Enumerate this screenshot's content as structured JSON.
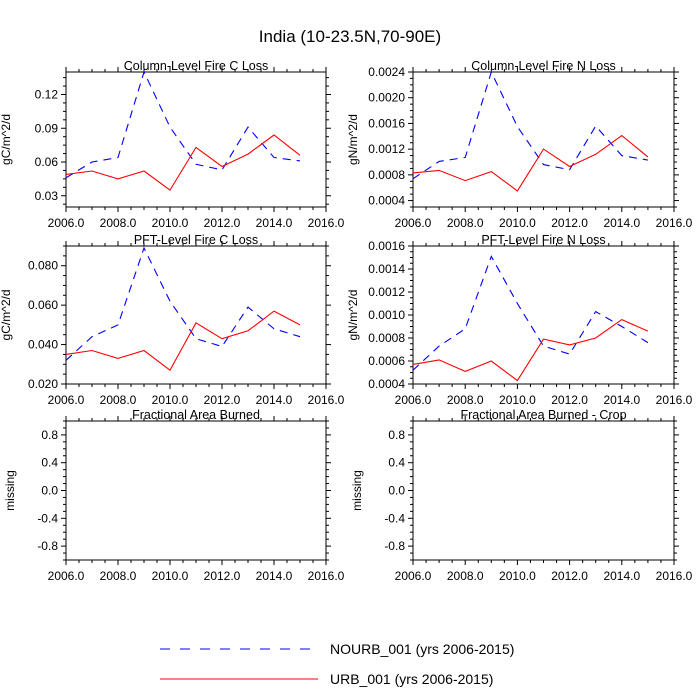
{
  "page_title": "India (10-23.5N,70-90E)",
  "chart_data": [
    {
      "type": "line",
      "title": "Column-Level Fire C Loss",
      "xlabel": "",
      "ylabel": "gC/m^2/d",
      "xlim": [
        2006.0,
        2016.0
      ],
      "ylim": [
        0.02,
        0.14
      ],
      "xticks": [
        2006,
        2008,
        2010,
        2012,
        2014,
        2016
      ],
      "xtick_labels": [
        "2006.0",
        "2008.0",
        "2010.0",
        "2012.0",
        "2014.0",
        "2016.0"
      ],
      "yticks": [
        0.03,
        0.06,
        0.09,
        0.12
      ],
      "ytick_labels": [
        "0.03",
        "0.06",
        "0.09",
        "0.12"
      ],
      "x": [
        2006,
        2007,
        2008,
        2009,
        2010,
        2011,
        2012,
        2013,
        2014,
        2015
      ],
      "series": [
        {
          "name": "NOURB_001 (yrs 2006-2015)",
          "values": [
            0.046,
            0.06,
            0.064,
            0.14,
            0.091,
            0.058,
            0.053,
            0.091,
            0.064,
            0.061
          ]
        },
        {
          "name": "URB_001 (yrs 2006-2015)",
          "values": [
            0.049,
            0.052,
            0.045,
            0.052,
            0.035,
            0.073,
            0.056,
            0.067,
            0.084,
            0.066
          ]
        }
      ]
    },
    {
      "type": "line",
      "title": "Column-Level Fire N Loss",
      "xlabel": "",
      "ylabel": "gN/m^2/d",
      "xlim": [
        2006.0,
        2016.0
      ],
      "ylim": [
        0.0003,
        0.0024
      ],
      "xticks": [
        2006,
        2008,
        2010,
        2012,
        2014,
        2016
      ],
      "xtick_labels": [
        "2006.0",
        "2008.0",
        "2010.0",
        "2012.0",
        "2014.0",
        "2016.0"
      ],
      "yticks": [
        0.0004,
        0.0008,
        0.0012,
        0.0016,
        0.002,
        0.0024
      ],
      "ytick_labels": [
        "0.0004",
        "0.0008",
        "0.0012",
        "0.0016",
        "0.0020",
        "0.0024"
      ],
      "x": [
        2006,
        2007,
        2008,
        2009,
        2010,
        2011,
        2012,
        2013,
        2014,
        2015
      ],
      "series": [
        {
          "name": "NOURB_001 (yrs 2006-2015)",
          "values": [
            0.00074,
            0.00101,
            0.00107,
            0.0024,
            0.00155,
            0.00096,
            0.00088,
            0.00156,
            0.0011,
            0.00103
          ]
        },
        {
          "name": "URB_001 (yrs 2006-2015)",
          "values": [
            0.00083,
            0.00087,
            0.00071,
            0.00085,
            0.00055,
            0.0012,
            0.00093,
            0.00112,
            0.00141,
            0.00108
          ]
        }
      ]
    },
    {
      "type": "line",
      "title": "PFT-Level Fire C Loss",
      "xlabel": "",
      "ylabel": "gC/m^2/d",
      "xlim": [
        2006.0,
        2016.0
      ],
      "ylim": [
        0.02,
        0.09
      ],
      "xticks": [
        2006,
        2008,
        2010,
        2012,
        2014,
        2016
      ],
      "xtick_labels": [
        "2006.0",
        "2008.0",
        "2010.0",
        "2012.0",
        "2014.0",
        "2016.0"
      ],
      "yticks": [
        0.02,
        0.04,
        0.06,
        0.08
      ],
      "ytick_labels": [
        "0.020",
        "0.040",
        "0.060",
        "0.080"
      ],
      "x": [
        2006,
        2007,
        2008,
        2009,
        2010,
        2011,
        2012,
        2013,
        2014,
        2015
      ],
      "series": [
        {
          "name": "NOURB_001 (yrs 2006-2015)",
          "values": [
            0.032,
            0.044,
            0.05,
            0.089,
            0.062,
            0.043,
            0.039,
            0.059,
            0.048,
            0.044
          ]
        },
        {
          "name": "URB_001 (yrs 2006-2015)",
          "values": [
            0.035,
            0.037,
            0.033,
            0.037,
            0.027,
            0.051,
            0.043,
            0.047,
            0.057,
            0.05
          ]
        }
      ]
    },
    {
      "type": "line",
      "title": "PFT-Level Fire N Loss",
      "xlabel": "",
      "ylabel": "gN/m^2/d",
      "xlim": [
        2006.0,
        2016.0
      ],
      "ylim": [
        0.0004,
        0.0016
      ],
      "xticks": [
        2006,
        2008,
        2010,
        2012,
        2014,
        2016
      ],
      "xtick_labels": [
        "2006.0",
        "2008.0",
        "2010.0",
        "2012.0",
        "2014.0",
        "2016.0"
      ],
      "yticks": [
        0.0004,
        0.0006,
        0.0008,
        0.001,
        0.0012,
        0.0014,
        0.0016
      ],
      "ytick_labels": [
        "0.0004",
        "0.0006",
        "0.0008",
        "0.0010",
        "0.0012",
        "0.0014",
        "0.0016"
      ],
      "x": [
        2006,
        2007,
        2008,
        2009,
        2010,
        2011,
        2012,
        2013,
        2014,
        2015
      ],
      "series": [
        {
          "name": "NOURB_001 (yrs 2006-2015)",
          "values": [
            0.00052,
            0.00073,
            0.00088,
            0.00151,
            0.0011,
            0.00073,
            0.00066,
            0.00103,
            0.0009,
            0.00076
          ]
        },
        {
          "name": "URB_001 (yrs 2006-2015)",
          "values": [
            0.00057,
            0.00061,
            0.00051,
            0.0006,
            0.00043,
            0.00079,
            0.00074,
            0.0008,
            0.00096,
            0.00086
          ]
        }
      ]
    },
    {
      "type": "line",
      "title": "Fractional Area Burned",
      "xlabel": "",
      "ylabel": "missing",
      "xlim": [
        2006.0,
        2016.0
      ],
      "ylim": [
        -1.0,
        1.0
      ],
      "xticks": [
        2006,
        2008,
        2010,
        2012,
        2014,
        2016
      ],
      "xtick_labels": [
        "2006.0",
        "2008.0",
        "2010.0",
        "2012.0",
        "2014.0",
        "2016.0"
      ],
      "yticks": [
        -0.8,
        -0.4,
        0.0,
        0.4,
        0.8
      ],
      "ytick_labels": [
        "-0.8",
        "-0.4",
        "0.0",
        "0.4",
        "0.8"
      ],
      "x": [],
      "series": []
    },
    {
      "type": "line",
      "title": "Fractional Area Burned - Crop",
      "xlabel": "",
      "ylabel": "missing",
      "xlim": [
        2006.0,
        2016.0
      ],
      "ylim": [
        -1.0,
        1.0
      ],
      "xticks": [
        2006,
        2008,
        2010,
        2012,
        2014,
        2016
      ],
      "xtick_labels": [
        "2006.0",
        "2008.0",
        "2010.0",
        "2012.0",
        "2014.0",
        "2016.0"
      ],
      "yticks": [
        -0.8,
        -0.4,
        0.0,
        0.4,
        0.8
      ],
      "ytick_labels": [
        "-0.8",
        "-0.4",
        "0.0",
        "0.4",
        "0.8"
      ],
      "x": [],
      "series": []
    }
  ],
  "legend": [
    {
      "label": "NOURB_001 (yrs 2006-2015)",
      "color": "#0000ff",
      "style": "dashed"
    },
    {
      "label": "URB_001 (yrs 2006-2015)",
      "color": "#ff0000",
      "style": "solid"
    }
  ],
  "colors": {
    "nourb": "#0000ff",
    "urb": "#ff0000",
    "axes": "#000000"
  }
}
